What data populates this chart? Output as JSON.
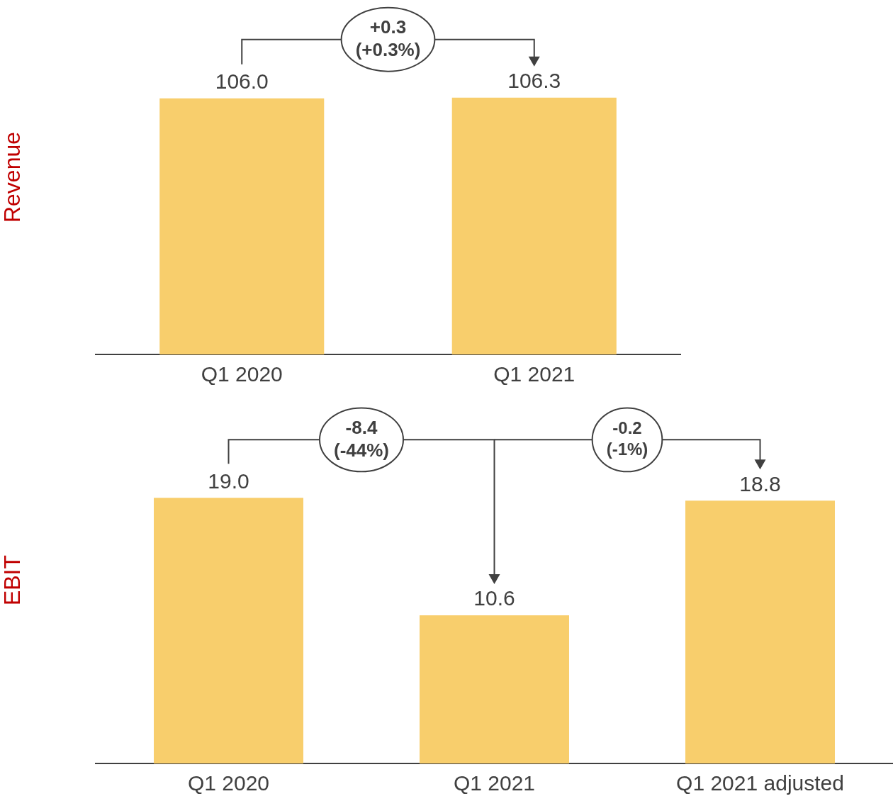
{
  "chart_data": [
    {
      "type": "bar",
      "ylabel": "Revenue",
      "categories": [
        "Q1 2020",
        "Q1 2021"
      ],
      "values": [
        106.0,
        106.3
      ],
      "value_labels": [
        "106.0",
        "106.3"
      ],
      "color": "#f8ce6c",
      "grid": false,
      "legend": false,
      "tick_labels": "x",
      "annotations": [
        "+0.3\n(+0.3%)"
      ]
    },
    {
      "type": "bar",
      "ylabel": "EBIT",
      "categories": [
        "Q1 2020",
        "Q1 2021",
        "Q1 2021 adjusted"
      ],
      "values": [
        19.0,
        10.6,
        18.8
      ],
      "value_labels": [
        "19.0",
        "10.6",
        "18.8"
      ],
      "color": "#f8ce6c",
      "grid": false,
      "legend": false,
      "tick_labels": "x",
      "annotations": [
        "-8.4\n(-44%)",
        "-0.2\n(-1%)"
      ]
    }
  ]
}
